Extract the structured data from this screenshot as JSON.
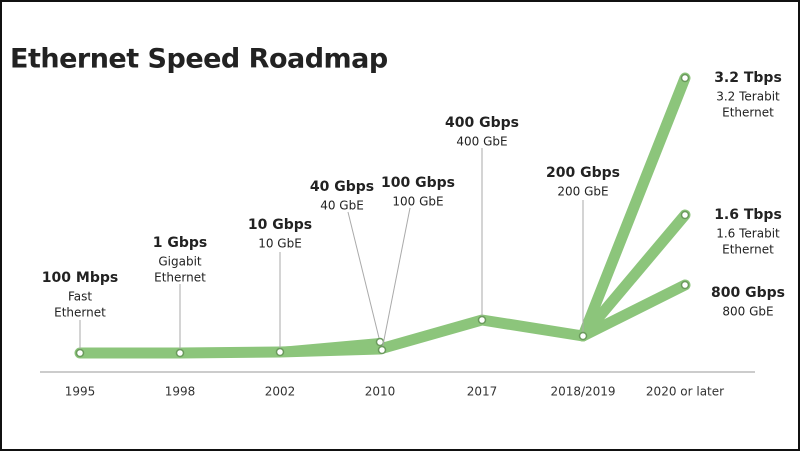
{
  "title": "Ethernet Speed Roadmap",
  "x_labels": [
    "1995",
    "1998",
    "2002",
    "2010",
    "2017",
    "2018/2019",
    "2020 or later"
  ],
  "milestones": [
    {
      "speed": "100 Mbps",
      "detail": [
        "Fast",
        "Ethernet"
      ]
    },
    {
      "speed": "1 Gbps",
      "detail": [
        "Gigabit",
        "Ethernet"
      ]
    },
    {
      "speed": "10 Gbps",
      "detail": [
        "10 GbE"
      ]
    },
    {
      "speed": "40 Gbps",
      "detail": [
        "40 GbE"
      ]
    },
    {
      "speed": "100 Gbps",
      "detail": [
        "100 GbE"
      ]
    },
    {
      "speed": "400 Gbps",
      "detail": [
        "400 GbE"
      ]
    },
    {
      "speed": "200 Gbps",
      "detail": [
        "200 GbE"
      ]
    },
    {
      "speed": "3.2 Tbps",
      "detail": [
        "3.2 Terabit",
        "Ethernet"
      ]
    },
    {
      "speed": "1.6 Tbps",
      "detail": [
        "1.6 Terabit",
        "Ethernet"
      ]
    },
    {
      "speed": "800 Gbps",
      "detail": [
        "800 GbE"
      ]
    }
  ]
}
